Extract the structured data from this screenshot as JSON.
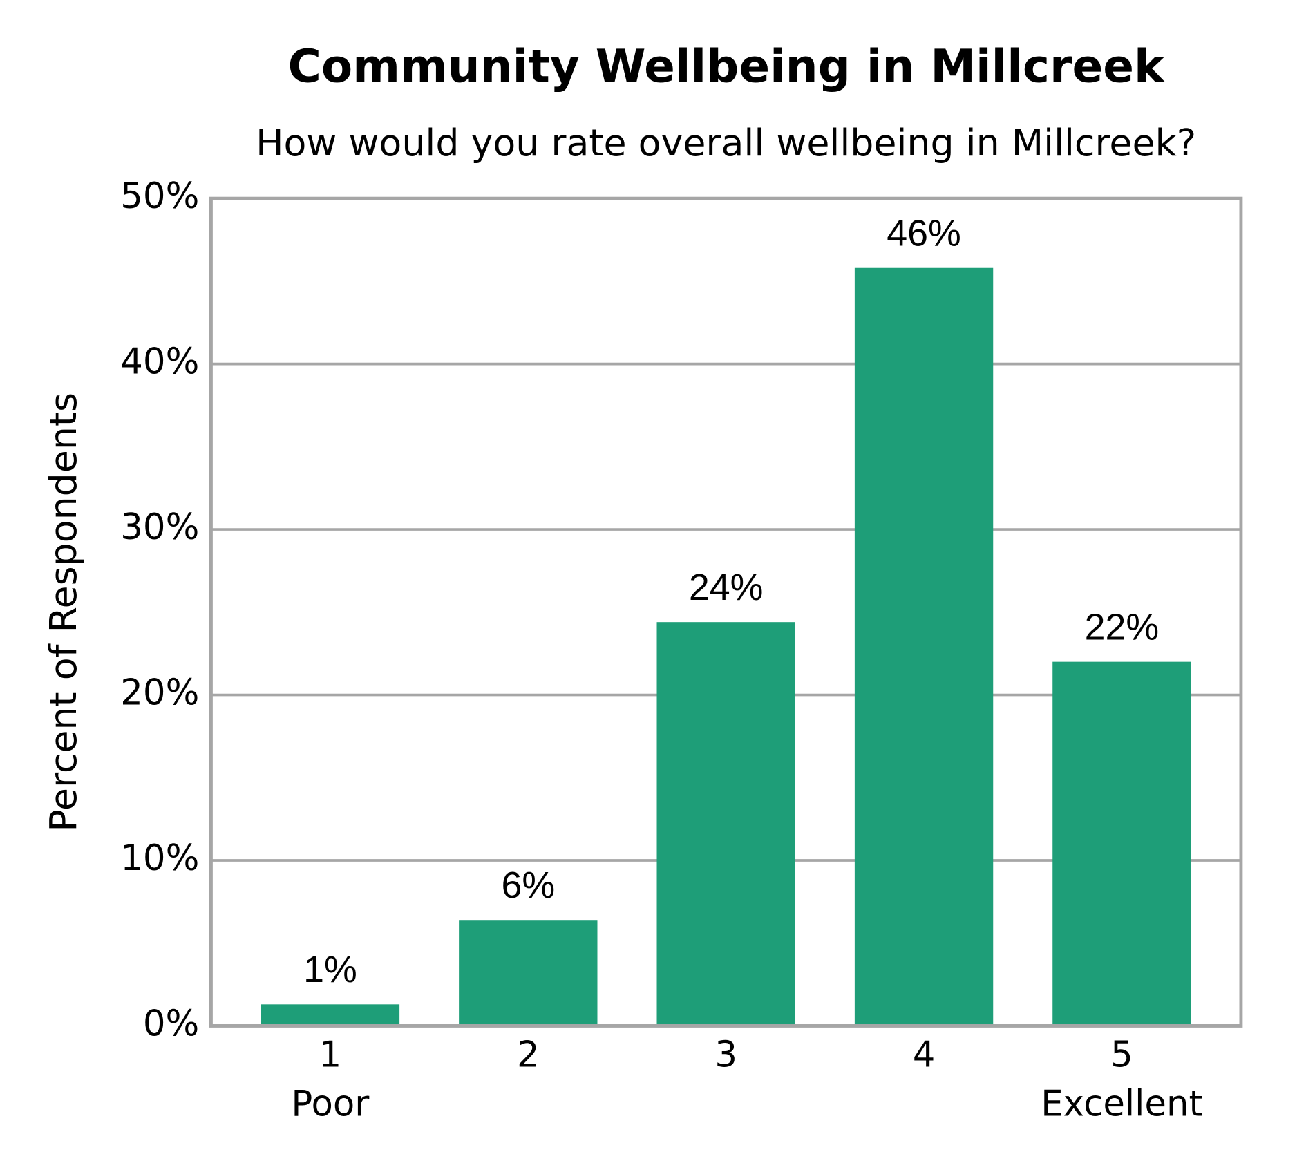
{
  "chart_data": {
    "type": "bar",
    "title": "Community Wellbeing in Millcreek",
    "subtitle": "How would you rate overall wellbeing in Millcreek?",
    "y_label": "Percent of Respondents",
    "categories": [
      "1",
      "2",
      "3",
      "4",
      "5"
    ],
    "category_labels": [
      "Poor",
      null,
      null,
      null,
      "Excellent"
    ],
    "values": [
      1.3,
      6.4,
      24.4,
      45.8,
      22.0
    ],
    "value_labels": [
      "1%",
      "6%",
      "24%",
      "46%",
      "22%"
    ],
    "color": "#1e9e78",
    "ylim": [
      0,
      50
    ],
    "yticks": [
      {
        "value": 0,
        "label": "0%"
      },
      {
        "value": 10,
        "label": "10%"
      },
      {
        "value": 20,
        "label": "20%"
      },
      {
        "value": 30,
        "label": "30%"
      },
      {
        "value": 40,
        "label": "40%"
      },
      {
        "value": 50,
        "label": "50%"
      }
    ],
    "grid": true
  }
}
